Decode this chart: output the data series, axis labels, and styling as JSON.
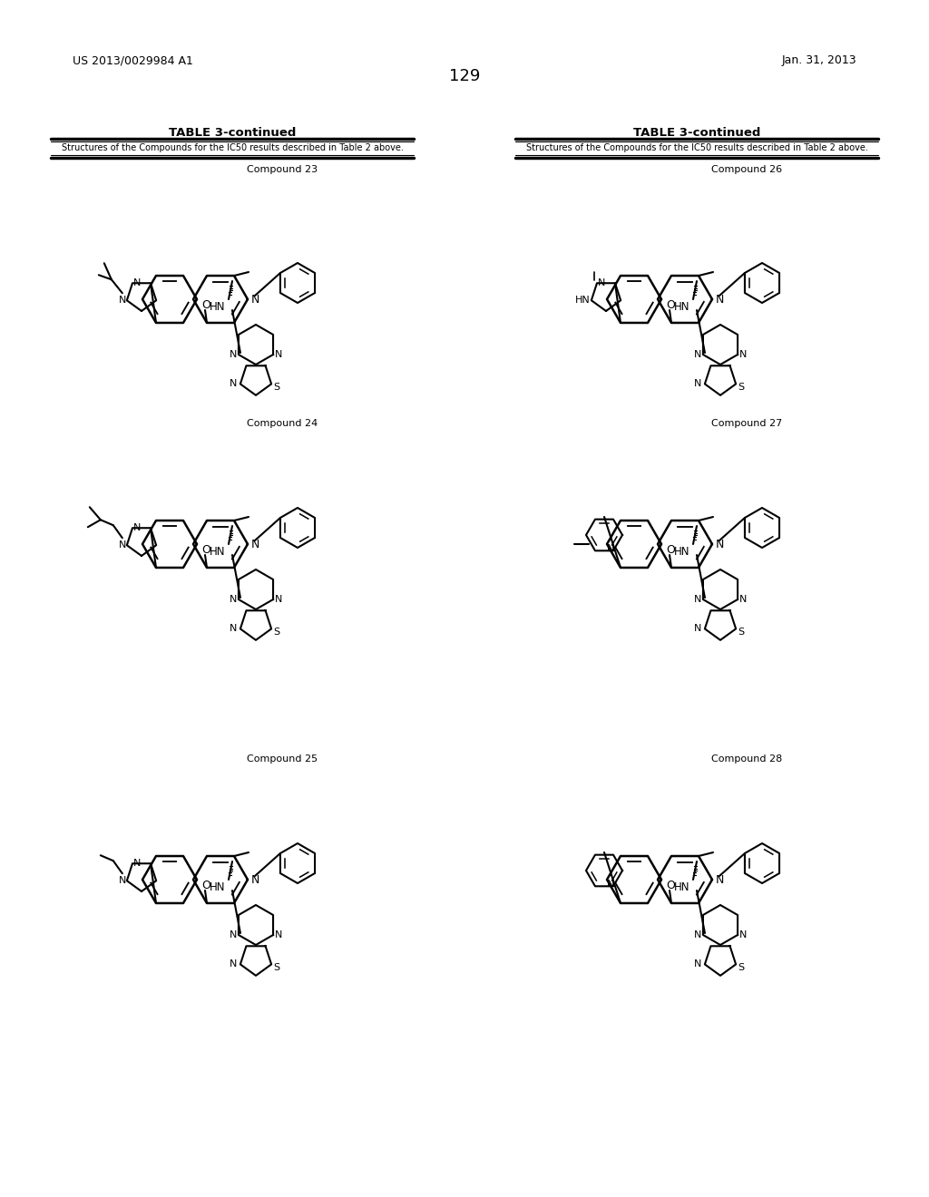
{
  "page_number": "129",
  "patent_number": "US 2013/0029984 A1",
  "patent_date": "Jan. 31, 2013",
  "table_title": "TABLE 3-continued",
  "table_subtitle": "Structures of the Compounds for the IC50 results described in Table 2 above.",
  "bg_color": "#ffffff",
  "compound_labels": [
    "Compound 23",
    "Compound 24",
    "Compound 25",
    "Compound 26",
    "Compound 27",
    "Compound 28"
  ]
}
